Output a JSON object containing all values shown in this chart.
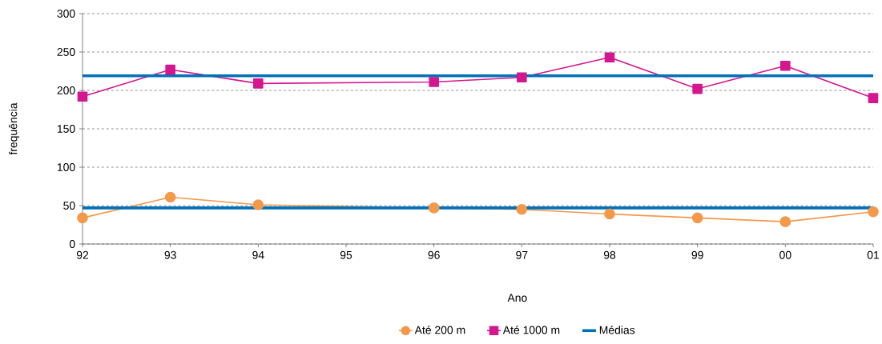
{
  "chart_data": {
    "type": "line",
    "xlabel": "Ano",
    "ylabel": "frequência",
    "categories": [
      "92",
      "93",
      "94",
      "95",
      "96",
      "97",
      "98",
      "99",
      "00",
      "01"
    ],
    "series": [
      {
        "name": "Até 200 m",
        "color": "#f4994a",
        "marker": "circle",
        "values": [
          34,
          61,
          51,
          null,
          47,
          45,
          39,
          34,
          29,
          42
        ]
      },
      {
        "name": "Até 1000 m",
        "color": "#d4178f",
        "marker": "square",
        "values": [
          192,
          227,
          209,
          null,
          211,
          217,
          243,
          202,
          232,
          190
        ]
      }
    ],
    "ref_lines": [
      {
        "axis": "y",
        "value": 219,
        "label": "Médias",
        "color": "#0070b8"
      },
      {
        "axis": "y",
        "value": 47,
        "color": "#0070b8"
      }
    ],
    "ylim": [
      0,
      300
    ],
    "yticks": [
      0,
      50,
      100,
      150,
      200,
      250,
      300
    ],
    "grid": "y",
    "legend": "bottom"
  }
}
